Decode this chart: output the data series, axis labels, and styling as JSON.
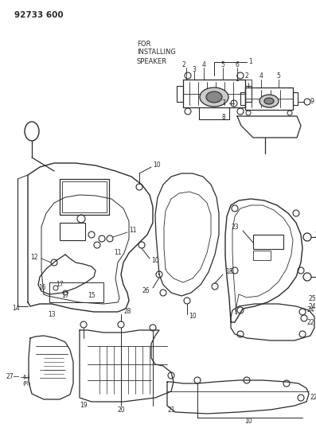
{
  "bg_color": "#ffffff",
  "line_color": "#2a2a2a",
  "title": "92733 600",
  "for_text": [
    "FOR",
    "INSTALLING",
    "SPEAKER"
  ],
  "figsize": [
    3.97,
    5.33
  ],
  "dpi": 100
}
